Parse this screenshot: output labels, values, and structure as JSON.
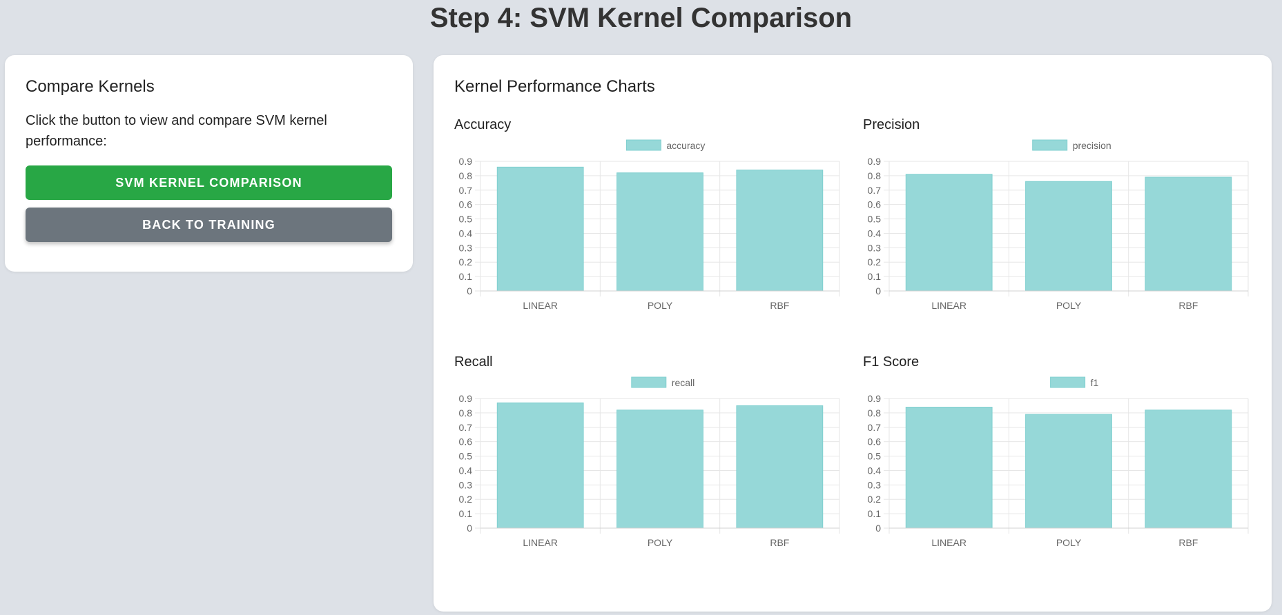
{
  "page": {
    "title": "Step 4: SVM Kernel Comparison"
  },
  "left_panel": {
    "title": "Compare Kernels",
    "description": "Click the button to view and compare SVM kernel performance:",
    "compare_button": "SVM Kernel Comparison",
    "back_button": "Back to Training"
  },
  "right_panel": {
    "title": "Kernel Performance Charts"
  },
  "colors": {
    "bar_fill": "#96d8d8",
    "bar_stroke": "#7fcfcf",
    "green": "#28a745",
    "gray": "#6c757d",
    "grid": "#e6e6e6"
  },
  "chart_data": [
    {
      "type": "bar",
      "title": "Accuracy",
      "categories": [
        "LINEAR",
        "POLY",
        "RBF"
      ],
      "series": [
        {
          "name": "accuracy",
          "values": [
            0.86,
            0.82,
            0.84
          ]
        }
      ],
      "ylim": [
        0,
        0.9
      ],
      "yticks": [
        "0",
        "0.1",
        "0.2",
        "0.3",
        "0.4",
        "0.5",
        "0.6",
        "0.7",
        "0.8",
        "0.9"
      ],
      "legend": "top-center",
      "grid": true
    },
    {
      "type": "bar",
      "title": "Precision",
      "categories": [
        "LINEAR",
        "POLY",
        "RBF"
      ],
      "series": [
        {
          "name": "precision",
          "values": [
            0.81,
            0.76,
            0.79
          ]
        }
      ],
      "ylim": [
        0,
        0.9
      ],
      "yticks": [
        "0",
        "0.1",
        "0.2",
        "0.3",
        "0.4",
        "0.5",
        "0.6",
        "0.7",
        "0.8",
        "0.9"
      ],
      "legend": "top-center",
      "grid": true
    },
    {
      "type": "bar",
      "title": "Recall",
      "categories": [
        "LINEAR",
        "POLY",
        "RBF"
      ],
      "series": [
        {
          "name": "recall",
          "values": [
            0.87,
            0.82,
            0.85
          ]
        }
      ],
      "ylim": [
        0,
        0.9
      ],
      "yticks": [
        "0",
        "0.1",
        "0.2",
        "0.3",
        "0.4",
        "0.5",
        "0.6",
        "0.7",
        "0.8",
        "0.9"
      ],
      "legend": "top-center",
      "grid": true
    },
    {
      "type": "bar",
      "title": "F1 Score",
      "categories": [
        "LINEAR",
        "POLY",
        "RBF"
      ],
      "series": [
        {
          "name": "f1",
          "values": [
            0.84,
            0.79,
            0.82
          ]
        }
      ],
      "ylim": [
        0,
        0.9
      ],
      "yticks": [
        "0",
        "0.1",
        "0.2",
        "0.3",
        "0.4",
        "0.5",
        "0.6",
        "0.7",
        "0.8",
        "0.9"
      ],
      "legend": "top-center",
      "grid": true
    }
  ]
}
